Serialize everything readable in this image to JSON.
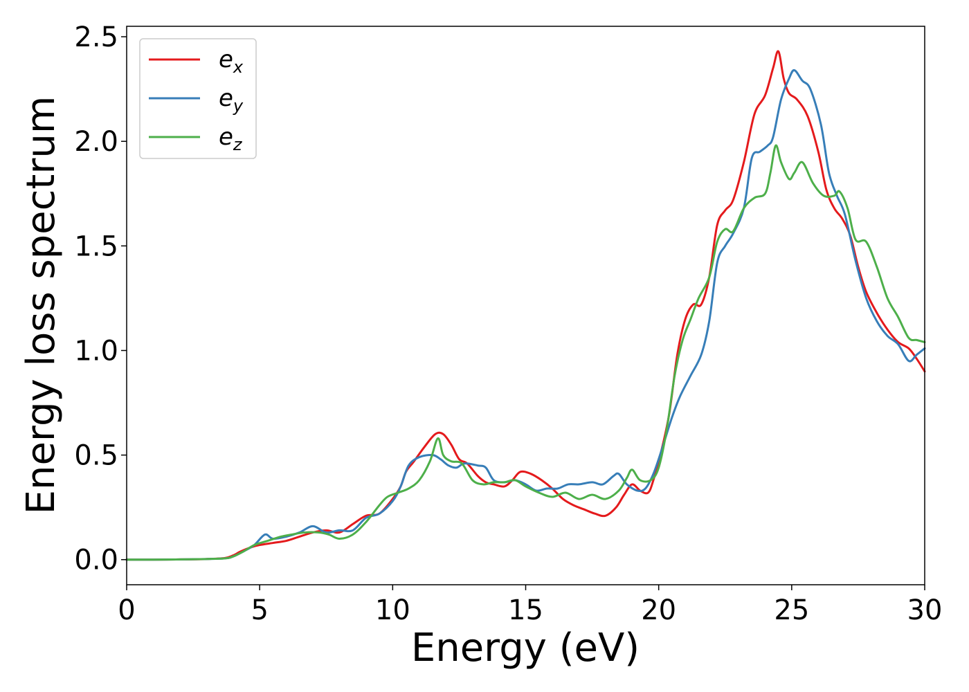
{
  "chart_data": {
    "type": "line",
    "title": "",
    "xlabel": "Energy (eV)",
    "ylabel": "Energy loss spectrum",
    "xlim": [
      0,
      30
    ],
    "ylim": [
      -0.12,
      2.55
    ],
    "xticks": [
      0,
      5,
      10,
      15,
      20,
      25,
      30
    ],
    "xtick_labels": [
      "0",
      "5",
      "10",
      "15",
      "20",
      "25",
      "30"
    ],
    "yticks": [
      0.0,
      0.5,
      1.0,
      1.5,
      2.0,
      2.5
    ],
    "ytick_labels": [
      "0.0",
      "0.5",
      "1.0",
      "1.5",
      "2.0",
      "2.5"
    ],
    "grid": false,
    "legend": "top-left",
    "series": [
      {
        "name": "e",
        "sub": "x",
        "color": "#e41a1c",
        "points": [
          [
            0,
            0
          ],
          [
            1,
            0
          ],
          [
            2,
            0.001
          ],
          [
            3,
            0.003
          ],
          [
            3.7,
            0.008
          ],
          [
            4,
            0.02
          ],
          [
            4.3,
            0.04
          ],
          [
            4.7,
            0.06
          ],
          [
            5,
            0.07
          ],
          [
            5.5,
            0.08
          ],
          [
            6,
            0.09
          ],
          [
            6.5,
            0.11
          ],
          [
            7,
            0.13
          ],
          [
            7.5,
            0.14
          ],
          [
            8,
            0.13
          ],
          [
            8.5,
            0.17
          ],
          [
            9,
            0.21
          ],
          [
            9.5,
            0.22
          ],
          [
            10,
            0.29
          ],
          [
            10.3,
            0.35
          ],
          [
            10.5,
            0.42
          ],
          [
            10.8,
            0.47
          ],
          [
            11.2,
            0.54
          ],
          [
            11.6,
            0.6
          ],
          [
            11.9,
            0.6
          ],
          [
            12.2,
            0.55
          ],
          [
            12.5,
            0.48
          ],
          [
            12.8,
            0.46
          ],
          [
            13.2,
            0.4
          ],
          [
            13.5,
            0.37
          ],
          [
            13.8,
            0.36
          ],
          [
            14.2,
            0.35
          ],
          [
            14.5,
            0.38
          ],
          [
            14.8,
            0.42
          ],
          [
            15.2,
            0.41
          ],
          [
            15.6,
            0.38
          ],
          [
            16,
            0.34
          ],
          [
            16.4,
            0.29
          ],
          [
            16.8,
            0.26
          ],
          [
            17.2,
            0.24
          ],
          [
            17.6,
            0.22
          ],
          [
            18,
            0.21
          ],
          [
            18.4,
            0.25
          ],
          [
            18.7,
            0.31
          ],
          [
            19,
            0.36
          ],
          [
            19.3,
            0.33
          ],
          [
            19.6,
            0.32
          ],
          [
            19.8,
            0.38
          ],
          [
            20.1,
            0.52
          ],
          [
            20.4,
            0.7
          ],
          [
            20.7,
            0.98
          ],
          [
            21,
            1.15
          ],
          [
            21.3,
            1.22
          ],
          [
            21.6,
            1.22
          ],
          [
            21.9,
            1.35
          ],
          [
            22.2,
            1.6
          ],
          [
            22.5,
            1.67
          ],
          [
            22.8,
            1.72
          ],
          [
            23.2,
            1.9
          ],
          [
            23.6,
            2.13
          ],
          [
            24,
            2.22
          ],
          [
            24.3,
            2.35
          ],
          [
            24.5,
            2.43
          ],
          [
            24.7,
            2.3
          ],
          [
            24.9,
            2.23
          ],
          [
            25.2,
            2.2
          ],
          [
            25.6,
            2.12
          ],
          [
            26,
            1.95
          ],
          [
            26.3,
            1.77
          ],
          [
            26.6,
            1.68
          ],
          [
            26.9,
            1.63
          ],
          [
            27.2,
            1.55
          ],
          [
            27.5,
            1.4
          ],
          [
            27.8,
            1.28
          ],
          [
            28.2,
            1.18
          ],
          [
            28.6,
            1.1
          ],
          [
            29,
            1.04
          ],
          [
            29.4,
            1.01
          ],
          [
            29.7,
            0.96
          ],
          [
            30,
            0.9
          ]
        ]
      },
      {
        "name": "e",
        "sub": "y",
        "color": "#377eb8",
        "points": [
          [
            0,
            0
          ],
          [
            1,
            0
          ],
          [
            2,
            0.001
          ],
          [
            3,
            0.003
          ],
          [
            3.7,
            0.006
          ],
          [
            4,
            0.015
          ],
          [
            4.4,
            0.04
          ],
          [
            4.8,
            0.07
          ],
          [
            5.2,
            0.12
          ],
          [
            5.5,
            0.1
          ],
          [
            6,
            0.11
          ],
          [
            6.5,
            0.13
          ],
          [
            7,
            0.16
          ],
          [
            7.5,
            0.13
          ],
          [
            8,
            0.14
          ],
          [
            8.5,
            0.14
          ],
          [
            9,
            0.2
          ],
          [
            9.5,
            0.22
          ],
          [
            10,
            0.28
          ],
          [
            10.3,
            0.35
          ],
          [
            10.6,
            0.45
          ],
          [
            11,
            0.49
          ],
          [
            11.5,
            0.5
          ],
          [
            11.8,
            0.48
          ],
          [
            12.1,
            0.45
          ],
          [
            12.4,
            0.44
          ],
          [
            12.7,
            0.46
          ],
          [
            13.2,
            0.45
          ],
          [
            13.5,
            0.44
          ],
          [
            13.8,
            0.38
          ],
          [
            14.2,
            0.37
          ],
          [
            14.6,
            0.38
          ],
          [
            15,
            0.36
          ],
          [
            15.4,
            0.33
          ],
          [
            15.8,
            0.34
          ],
          [
            16.2,
            0.34
          ],
          [
            16.6,
            0.36
          ],
          [
            17,
            0.36
          ],
          [
            17.5,
            0.37
          ],
          [
            17.9,
            0.36
          ],
          [
            18.3,
            0.4
          ],
          [
            18.5,
            0.41
          ],
          [
            18.8,
            0.36
          ],
          [
            19.2,
            0.33
          ],
          [
            19.5,
            0.34
          ],
          [
            19.8,
            0.41
          ],
          [
            20.1,
            0.52
          ],
          [
            20.5,
            0.68
          ],
          [
            20.8,
            0.78
          ],
          [
            21.2,
            0.88
          ],
          [
            21.6,
            0.98
          ],
          [
            21.9,
            1.14
          ],
          [
            22.2,
            1.42
          ],
          [
            22.5,
            1.5
          ],
          [
            22.8,
            1.56
          ],
          [
            23.2,
            1.68
          ],
          [
            23.5,
            1.92
          ],
          [
            23.8,
            1.95
          ],
          [
            24.1,
            1.98
          ],
          [
            24.3,
            2.02
          ],
          [
            24.6,
            2.2
          ],
          [
            24.9,
            2.3
          ],
          [
            25.1,
            2.34
          ],
          [
            25.4,
            2.29
          ],
          [
            25.7,
            2.25
          ],
          [
            26.1,
            2.08
          ],
          [
            26.4,
            1.85
          ],
          [
            26.7,
            1.74
          ],
          [
            27,
            1.65
          ],
          [
            27.4,
            1.43
          ],
          [
            27.8,
            1.25
          ],
          [
            28.2,
            1.14
          ],
          [
            28.6,
            1.07
          ],
          [
            29,
            1.03
          ],
          [
            29.4,
            0.95
          ],
          [
            29.7,
            0.98
          ],
          [
            30,
            1.01
          ]
        ]
      },
      {
        "name": "e",
        "sub": "z",
        "color": "#4daf4a",
        "points": [
          [
            0,
            0
          ],
          [
            1,
            0
          ],
          [
            2,
            0.001
          ],
          [
            3,
            0.003
          ],
          [
            3.7,
            0.006
          ],
          [
            4,
            0.015
          ],
          [
            4.4,
            0.04
          ],
          [
            4.8,
            0.07
          ],
          [
            5.3,
            0.09
          ],
          [
            5.8,
            0.11
          ],
          [
            6.2,
            0.12
          ],
          [
            6.7,
            0.13
          ],
          [
            7.2,
            0.13
          ],
          [
            7.6,
            0.12
          ],
          [
            8,
            0.1
          ],
          [
            8.5,
            0.12
          ],
          [
            9,
            0.18
          ],
          [
            9.5,
            0.26
          ],
          [
            9.8,
            0.3
          ],
          [
            10.2,
            0.32
          ],
          [
            10.6,
            0.34
          ],
          [
            11,
            0.38
          ],
          [
            11.4,
            0.47
          ],
          [
            11.7,
            0.58
          ],
          [
            11.9,
            0.5
          ],
          [
            12.2,
            0.47
          ],
          [
            12.6,
            0.46
          ],
          [
            13,
            0.38
          ],
          [
            13.4,
            0.36
          ],
          [
            13.8,
            0.37
          ],
          [
            14.2,
            0.37
          ],
          [
            14.6,
            0.38
          ],
          [
            15,
            0.35
          ],
          [
            15.5,
            0.32
          ],
          [
            16,
            0.3
          ],
          [
            16.5,
            0.32
          ],
          [
            17,
            0.29
          ],
          [
            17.5,
            0.31
          ],
          [
            18,
            0.29
          ],
          [
            18.5,
            0.33
          ],
          [
            18.8,
            0.39
          ],
          [
            19,
            0.43
          ],
          [
            19.3,
            0.38
          ],
          [
            19.7,
            0.38
          ],
          [
            20,
            0.44
          ],
          [
            20.3,
            0.62
          ],
          [
            20.6,
            0.88
          ],
          [
            20.9,
            1.05
          ],
          [
            21.2,
            1.15
          ],
          [
            21.5,
            1.25
          ],
          [
            21.9,
            1.35
          ],
          [
            22.2,
            1.52
          ],
          [
            22.5,
            1.58
          ],
          [
            22.8,
            1.57
          ],
          [
            23.2,
            1.68
          ],
          [
            23.6,
            1.73
          ],
          [
            24,
            1.75
          ],
          [
            24.2,
            1.85
          ],
          [
            24.4,
            1.98
          ],
          [
            24.6,
            1.9
          ],
          [
            24.9,
            1.82
          ],
          [
            25.1,
            1.85
          ],
          [
            25.4,
            1.9
          ],
          [
            25.8,
            1.8
          ],
          [
            26.2,
            1.74
          ],
          [
            26.6,
            1.74
          ],
          [
            26.8,
            1.76
          ],
          [
            27.1,
            1.68
          ],
          [
            27.4,
            1.53
          ],
          [
            27.8,
            1.52
          ],
          [
            28.2,
            1.4
          ],
          [
            28.6,
            1.25
          ],
          [
            29,
            1.16
          ],
          [
            29.4,
            1.06
          ],
          [
            29.7,
            1.05
          ],
          [
            30,
            1.04
          ]
        ]
      }
    ]
  }
}
